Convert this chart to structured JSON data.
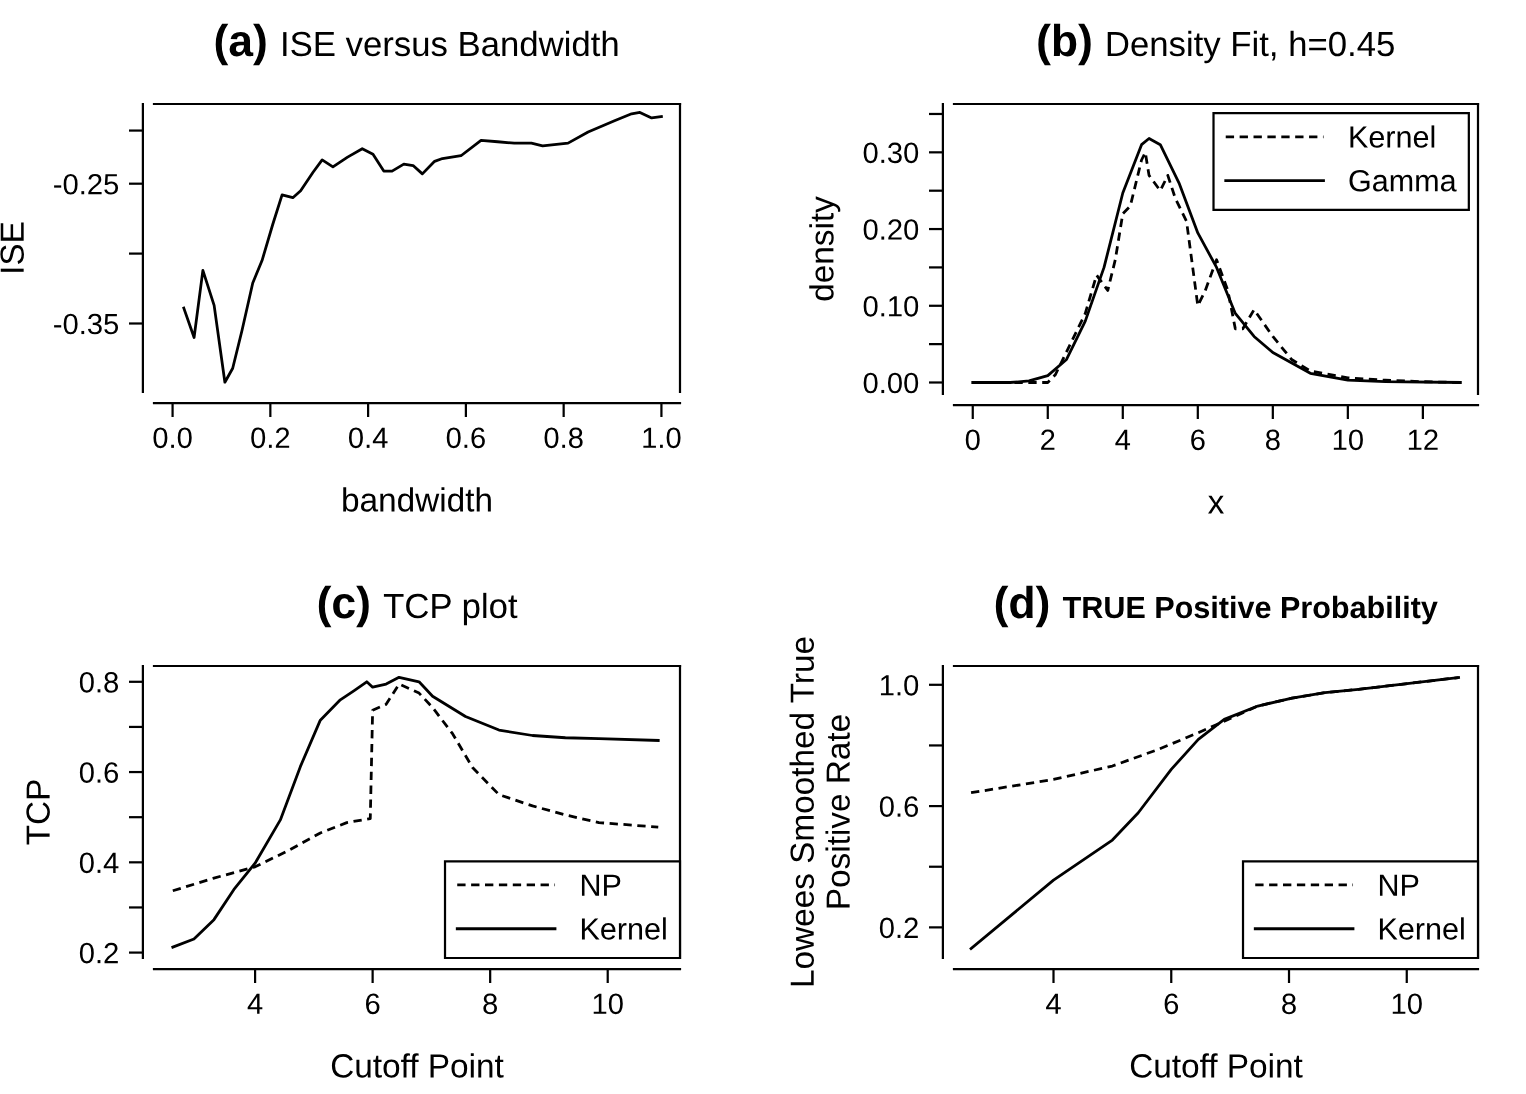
{
  "chart_data": [
    {
      "type": "line",
      "title": "(a) ISE versus Bandwidth",
      "xlabel": "bandwidth",
      "ylabel": "ISE",
      "xlim": [
        -0.038,
        1.038
      ],
      "ylim": [
        -0.399,
        -0.193
      ],
      "xticks": [
        {
          "value": 0,
          "label": "0.0"
        },
        {
          "value": 0.2,
          "label": "0.2"
        },
        {
          "value": 0.4,
          "label": "0.4"
        },
        {
          "value": 0.6,
          "label": "0.6"
        },
        {
          "value": 0.8,
          "label": "0.8"
        },
        {
          "value": 1.0,
          "label": "1.0"
        }
      ],
      "yticks": [
        {
          "value": -0.35,
          "label": "-0.35"
        },
        {
          "value": -0.3,
          "label": null
        },
        {
          "value": -0.25,
          "label": "-0.25"
        },
        {
          "value": -0.212,
          "label": null
        }
      ],
      "grid": false,
      "legend": false,
      "series": [
        {
          "color": "#000000",
          "line_style": "solid",
          "x": [
            0.023,
            0.044,
            0.062,
            0.085,
            0.107,
            0.123,
            0.142,
            0.164,
            0.183,
            0.205,
            0.224,
            0.246,
            0.262,
            0.287,
            0.306,
            0.328,
            0.358,
            0.388,
            0.41,
            0.432,
            0.449,
            0.473,
            0.492,
            0.511,
            0.536,
            0.552,
            0.59,
            0.631,
            0.665,
            0.699,
            0.734,
            0.757,
            0.809,
            0.85,
            0.904,
            0.939,
            0.956,
            0.98,
            1.0
          ],
          "values": [
            -0.339,
            -0.36,
            -0.312,
            -0.337,
            -0.392,
            -0.382,
            -0.355,
            -0.321,
            -0.305,
            -0.279,
            -0.258,
            -0.26,
            -0.255,
            -0.242,
            -0.233,
            -0.238,
            -0.231,
            -0.225,
            -0.229,
            -0.241,
            -0.241,
            -0.236,
            -0.237,
            -0.243,
            -0.234,
            -0.232,
            -0.23,
            -0.219,
            -0.22,
            -0.221,
            -0.221,
            -0.223,
            -0.221,
            -0.213,
            -0.205,
            -0.2,
            -0.199,
            -0.203,
            -0.202
          ]
        }
      ]
    },
    {
      "type": "line",
      "title": "(b) Density Fit, h=0.45",
      "xlabel": "x",
      "ylabel": "density",
      "xlim": [
        -0.5,
        13.47
      ],
      "ylim": [
        -0.015,
        0.363
      ],
      "xticks": [
        0,
        2,
        4,
        6,
        8,
        10,
        12
      ],
      "yticks": [
        {
          "value": 0.0,
          "label": "0.00"
        },
        {
          "value": 0.05,
          "label": null
        },
        {
          "value": 0.1,
          "label": "0.10"
        },
        {
          "value": 0.15,
          "label": null
        },
        {
          "value": 0.2,
          "label": "0.20"
        },
        {
          "value": 0.25,
          "label": null
        },
        {
          "value": 0.3,
          "label": "0.30"
        },
        {
          "value": 0.35,
          "label": null
        }
      ],
      "grid": false,
      "legend": "top right",
      "series": [
        {
          "name": "Kernel",
          "color": "#000000",
          "line_style": "dashed",
          "x": [
            0,
            1,
            2,
            2.2,
            2.5,
            2.8,
            3,
            3.3,
            3.6,
            3.8,
            4,
            4.2,
            4.5,
            4.6,
            4.7,
            5,
            5.2,
            5.4,
            5.7,
            6,
            6.2,
            6.5,
            6.8,
            7,
            7.2,
            7.5,
            8,
            8.5,
            9,
            10,
            11,
            12,
            13
          ],
          "values": [
            0,
            0,
            0,
            0.01,
            0.04,
            0.07,
            0.09,
            0.14,
            0.12,
            0.16,
            0.22,
            0.23,
            0.29,
            0.3,
            0.27,
            0.25,
            0.27,
            0.24,
            0.21,
            0.1,
            0.12,
            0.16,
            0.12,
            0.07,
            0.07,
            0.095,
            0.06,
            0.03,
            0.015,
            0.006,
            0.003,
            0.001,
            0
          ]
        },
        {
          "name": "Gamma",
          "color": "#000000",
          "line_style": "solid",
          "x": [
            0,
            1,
            1.5,
            2,
            2.5,
            3,
            3.5,
            4,
            4.5,
            4.7,
            5,
            5.5,
            6,
            6.5,
            7,
            7.5,
            8,
            9,
            10,
            11,
            13
          ],
          "values": [
            0,
            0,
            0.002,
            0.009,
            0.03,
            0.08,
            0.15,
            0.247,
            0.31,
            0.318,
            0.31,
            0.26,
            0.195,
            0.15,
            0.09,
            0.06,
            0.039,
            0.012,
            0.003,
            0.001,
            0
          ]
        }
      ]
    },
    {
      "type": "line",
      "title": "(c) TCP plot",
      "xlabel": "Cutoff Point",
      "ylabel": "TCP",
      "xlim": [
        2.28,
        11.23
      ],
      "ylim": [
        0.188,
        0.835
      ],
      "xticks": [
        4,
        6,
        8,
        10
      ],
      "yticks": [
        0.2,
        {
          "value": 0.3,
          "label": null
        },
        0.4,
        {
          "value": 0.5,
          "label": null
        },
        0.6,
        {
          "value": 0.7,
          "label": null
        },
        0.8
      ],
      "grid": false,
      "legend": "bottom right",
      "series": [
        {
          "name": "NP",
          "color": "#000000",
          "line_style": "dashed",
          "x": [
            2.6,
            3.3,
            4.0,
            4.55,
            5.11,
            5.56,
            5.96,
            6.0,
            6.23,
            6.45,
            6.79,
            7.02,
            7.36,
            7.7,
            8.15,
            8.72,
            9.28,
            9.85,
            10.86
          ],
          "values": [
            0.337,
            0.365,
            0.39,
            0.425,
            0.465,
            0.488,
            0.497,
            0.737,
            0.75,
            0.795,
            0.775,
            0.743,
            0.685,
            0.61,
            0.55,
            0.525,
            0.505,
            0.488,
            0.478
          ]
        },
        {
          "name": "Kernel",
          "color": "#000000",
          "line_style": "solid",
          "x": [
            2.6,
            2.96,
            3.3,
            3.64,
            4.0,
            4.43,
            4.77,
            5.11,
            5.45,
            5.68,
            5.9,
            6.0,
            6.23,
            6.45,
            6.79,
            7.02,
            7.58,
            8.15,
            8.72,
            9.28,
            9.85,
            10.86
          ],
          "values": [
            0.212,
            0.23,
            0.273,
            0.34,
            0.398,
            0.494,
            0.612,
            0.715,
            0.76,
            0.78,
            0.8,
            0.788,
            0.795,
            0.81,
            0.8,
            0.768,
            0.723,
            0.693,
            0.681,
            0.676,
            0.674,
            0.67
          ]
        }
      ]
    },
    {
      "type": "line",
      "title": "(d) TRUE Positive Probability",
      "xlabel": "Cutoff Point",
      "ylabel": "Lowees Smoothed True\nPositive Rate",
      "xlim": [
        2.31,
        11.21
      ],
      "ylim": [
        0.099,
        1.062
      ],
      "xticks": [
        4,
        6,
        8,
        10
      ],
      "yticks": [
        0.2,
        {
          "value": 0.4,
          "label": null
        },
        0.6,
        {
          "value": 0.8,
          "label": null
        },
        {
          "value": 1.0,
          "label": "1.0"
        }
      ],
      "grid": false,
      "legend": "bottom right",
      "series": [
        {
          "name": "NP",
          "color": "#000000",
          "line_style": "dashed",
          "x": [
            2.6,
            4.0,
            5.0,
            5.78,
            6.46,
            6.9,
            7.47,
            8.05,
            8.61,
            9.18,
            10.88
          ],
          "values": [
            0.644,
            0.688,
            0.732,
            0.787,
            0.842,
            0.88,
            0.93,
            0.956,
            0.974,
            0.985,
            1.024
          ]
        },
        {
          "name": "Kernel",
          "color": "#000000",
          "line_style": "solid",
          "x": [
            2.6,
            4.0,
            5.0,
            5.44,
            6.0,
            6.46,
            6.9,
            7.47,
            8.05,
            8.61,
            9.18,
            10.88
          ],
          "values": [
            0.13,
            0.356,
            0.488,
            0.578,
            0.721,
            0.82,
            0.886,
            0.93,
            0.956,
            0.974,
            0.985,
            1.024
          ]
        }
      ]
    }
  ]
}
